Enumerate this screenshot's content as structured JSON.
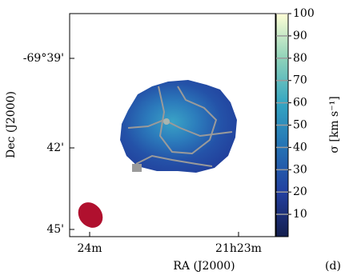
{
  "chart_data": {
    "type": "map",
    "xlabel": "RA (J2000)",
    "ylabel": "Dec (J2000)",
    "xtick_labels": [
      "24m",
      "21h23m"
    ],
    "ytick_labels": [
      "-69°39'",
      "42'",
      "45'"
    ],
    "panel_label": "(d)",
    "colorbar": {
      "label": "σ [km s⁻¹]",
      "lim": [
        0,
        100
      ],
      "ticks": [
        10,
        20,
        30,
        40,
        50,
        60,
        70,
        80,
        90,
        100
      ]
    }
  }
}
